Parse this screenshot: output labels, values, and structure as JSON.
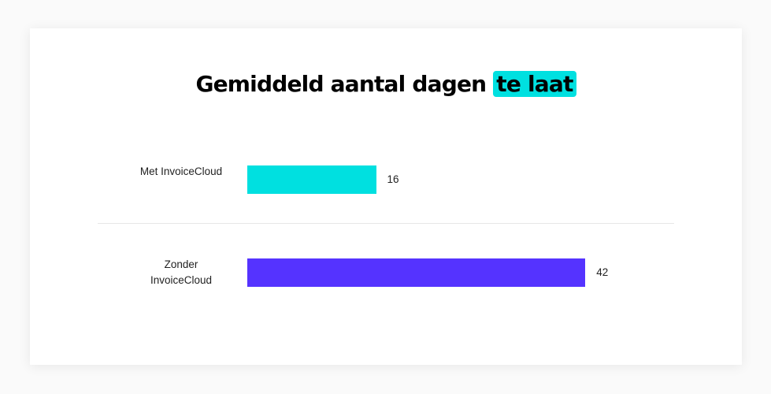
{
  "chart_data": {
    "type": "hbar",
    "title": "Gemiddeld aantal dagen",
    "title_highlight": "te laat",
    "highlight_color": "#00e0e0",
    "categories": [
      "Met InvoiceCloud",
      "Zonder InvoiceCloud"
    ],
    "values": [
      16,
      42
    ],
    "colors": [
      "#00e0e0",
      "#5533ff"
    ]
  }
}
